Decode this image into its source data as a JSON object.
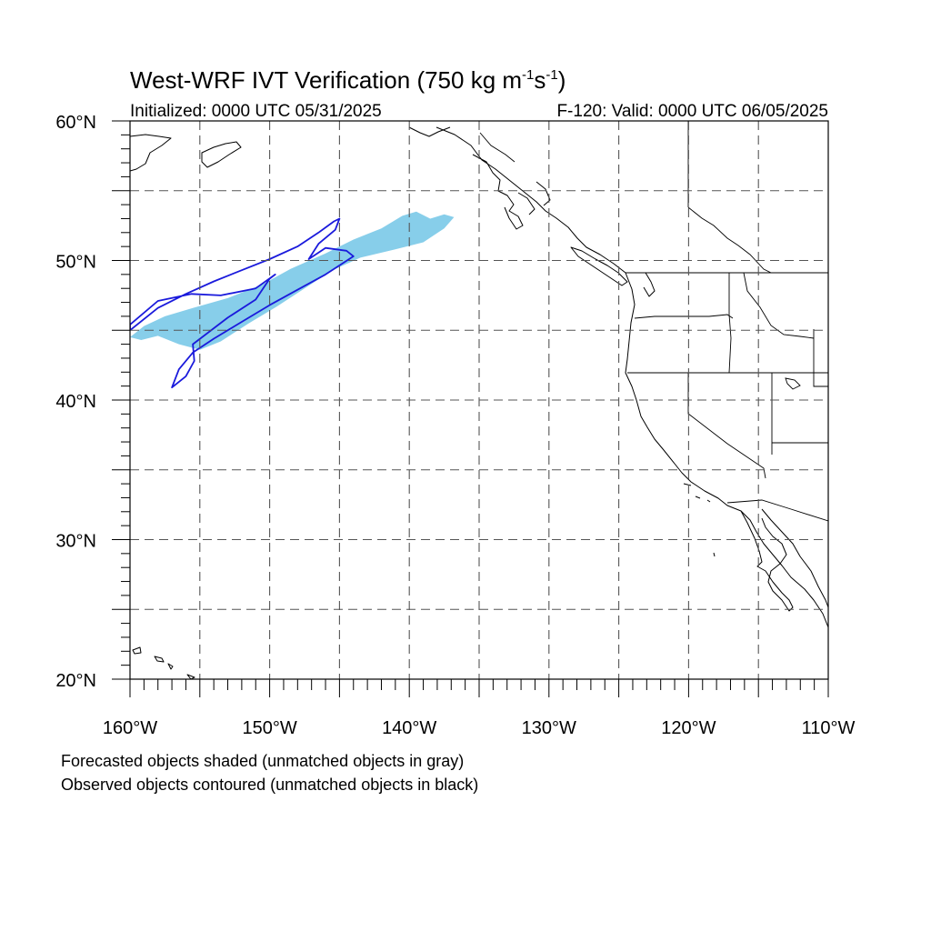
{
  "figure": {
    "title_main": "West-WRF IVT Verification (750 kg m",
    "title_exp1": "-1",
    "title_mid": "s",
    "title_exp2": "-1",
    "title_close": ")",
    "init_text": "Initialized: 0000 UTC 05/31/2025",
    "valid_text": "F-120: Valid: 0000 UTC 06/05/2025",
    "notes": [
      "Forecasted objects shaded (unmatched objects in gray)",
      "Observed objects contoured (unmatched objects in black)"
    ]
  },
  "map": {
    "lon_range": [
      -160,
      -110
    ],
    "lat_range": [
      20,
      60
    ],
    "lon_labels": [
      {
        "lon": -160,
        "label": "160°W"
      },
      {
        "lon": -150,
        "label": "150°W"
      },
      {
        "lon": -140,
        "label": "140°W"
      },
      {
        "lon": -130,
        "label": "130°W"
      },
      {
        "lon": -120,
        "label": "120°W"
      },
      {
        "lon": -110,
        "label": "110°W"
      }
    ],
    "lat_labels": [
      {
        "lat": 60,
        "label": "60°N"
      },
      {
        "lat": 50,
        "label": "50°N"
      },
      {
        "lat": 40,
        "label": "40°N"
      },
      {
        "lat": 30,
        "label": "30°N"
      },
      {
        "lat": 20,
        "label": "20°N"
      }
    ],
    "gridline_lons": [
      -155,
      -150,
      -145,
      -140,
      -135,
      -130,
      -125,
      -120,
      -115
    ],
    "gridline_lats": [
      25,
      30,
      35,
      40,
      45,
      50,
      55
    ],
    "colors": {
      "forecast_fill": "#87ceea",
      "observed_contour": "#1a1adc",
      "coast": "#000000",
      "grid": "#555555"
    },
    "forecast_object": [
      [
        -160.0,
        44.5
      ],
      [
        -159.0,
        45.3
      ],
      [
        -157.5,
        46.0
      ],
      [
        -155.5,
        46.6
      ],
      [
        -153.0,
        47.3
      ],
      [
        -150.5,
        48.3
      ],
      [
        -148.5,
        49.4
      ],
      [
        -146.0,
        50.5
      ],
      [
        -144.0,
        51.5
      ],
      [
        -142.0,
        52.3
      ],
      [
        -140.5,
        53.2
      ],
      [
        -139.5,
        53.5
      ],
      [
        -138.5,
        53.0
      ],
      [
        -137.5,
        53.3
      ],
      [
        -136.8,
        53.1
      ],
      [
        -137.5,
        52.3
      ],
      [
        -139.0,
        51.3
      ],
      [
        -141.0,
        50.8
      ],
      [
        -143.5,
        50.2
      ],
      [
        -145.5,
        49.3
      ],
      [
        -147.5,
        48.0
      ],
      [
        -149.5,
        46.7
      ],
      [
        -151.5,
        45.5
      ],
      [
        -153.5,
        44.2
      ],
      [
        -155.0,
        43.6
      ],
      [
        -156.5,
        44.0
      ],
      [
        -158.0,
        44.6
      ],
      [
        -159.2,
        44.3
      ]
    ],
    "observed_objects": [
      [
        [
          -160.0,
          45.0
        ],
        [
          -158.0,
          46.6
        ],
        [
          -156.0,
          47.6
        ],
        [
          -154.0,
          48.5
        ],
        [
          -152.0,
          49.3
        ],
        [
          -150.0,
          50.1
        ],
        [
          -148.0,
          51.0
        ],
        [
          -146.5,
          52.0
        ],
        [
          -145.4,
          52.8
        ],
        [
          -145.0,
          53.0
        ],
        [
          -145.3,
          52.2
        ],
        [
          -146.5,
          51.2
        ],
        [
          -147.2,
          50.1
        ],
        [
          -146.0,
          50.9
        ],
        [
          -144.5,
          50.7
        ],
        [
          -144.0,
          50.3
        ],
        [
          -146.0,
          49.0
        ],
        [
          -148.0,
          47.9
        ],
        [
          -150.0,
          46.8
        ],
        [
          -152.0,
          45.6
        ],
        [
          -154.0,
          44.4
        ],
        [
          -155.5,
          43.4
        ],
        [
          -156.5,
          42.2
        ],
        [
          -157.0,
          40.9
        ],
        [
          -156.0,
          41.7
        ],
        [
          -155.4,
          42.8
        ],
        [
          -155.5,
          44.0
        ],
        [
          -153.0,
          45.9
        ],
        [
          -151.0,
          47.2
        ],
        [
          -150.0,
          48.7
        ],
        [
          -149.6,
          49.0
        ],
        [
          -151.0,
          48.0
        ],
        [
          -153.5,
          47.5
        ],
        [
          -155.6,
          47.6
        ],
        [
          -158.0,
          47.1
        ],
        [
          -160.0,
          45.4
        ]
      ]
    ]
  }
}
